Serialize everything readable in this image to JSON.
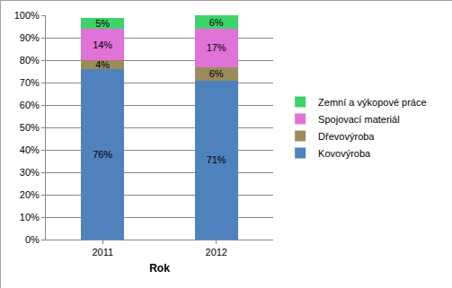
{
  "chart_data": {
    "type": "bar",
    "stacked": true,
    "data_labels": true,
    "grid": true,
    "legend": "right",
    "x_label": "Rok",
    "categories": [
      "2011",
      "2012"
    ],
    "series": [
      {
        "name": "Kovovýroba",
        "color": "#4f81bd",
        "values": [
          76,
          71
        ],
        "value_labels": [
          "76%",
          "71%"
        ]
      },
      {
        "name": "Dřevovýroba",
        "color": "#9b8c5c",
        "values": [
          4,
          6
        ],
        "value_labels": [
          "4%",
          "6%"
        ]
      },
      {
        "name": "Spojovací materiál",
        "color": "#e072d8",
        "values": [
          14,
          17
        ],
        "value_labels": [
          "14%",
          "17%"
        ]
      },
      {
        "name": "Zemní a výkopové práce",
        "color": "#3dd26a",
        "values": [
          5,
          6
        ],
        "value_labels": [
          "5%",
          "6%"
        ]
      }
    ],
    "ylim": [
      0,
      100
    ],
    "yticks": [
      {
        "value": 0,
        "label": "0%"
      },
      {
        "value": 10,
        "label": "10%"
      },
      {
        "value": 20,
        "label": "20%"
      },
      {
        "value": 30,
        "label": "30%"
      },
      {
        "value": 40,
        "label": "40%"
      },
      {
        "value": 50,
        "label": "50%"
      },
      {
        "value": 60,
        "label": "60%"
      },
      {
        "value": 70,
        "label": "70%"
      },
      {
        "value": 80,
        "label": "80%"
      },
      {
        "value": 90,
        "label": "90%"
      },
      {
        "value": 100,
        "label": "100%"
      }
    ]
  }
}
